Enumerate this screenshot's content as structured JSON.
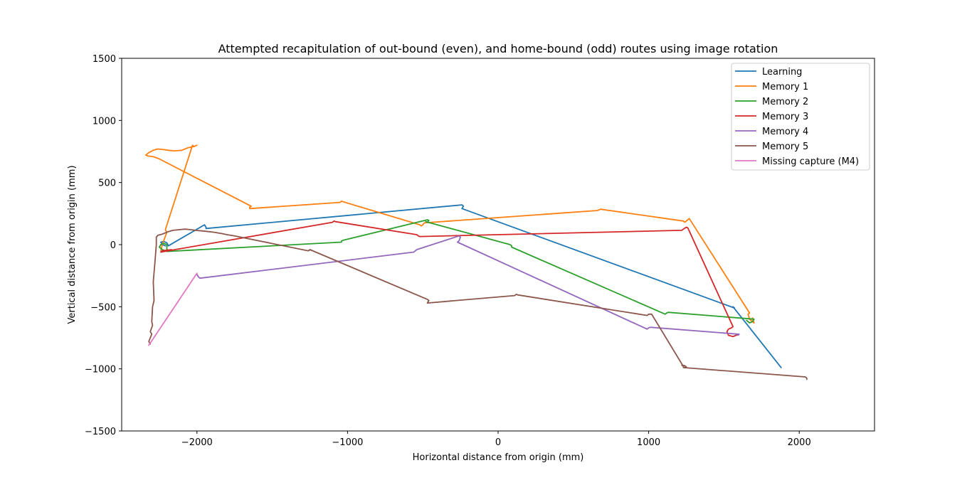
{
  "chart_data": {
    "type": "line",
    "title": "Attempted recapitulation of out-bound (even), and home-bound (odd) routes using image rotation",
    "xlabel": "Horizontal distance from origin (mm)",
    "ylabel": "Vertical distance from origin (mm)",
    "xlim": [
      -2500,
      2500
    ],
    "ylim": [
      -1500,
      1500
    ],
    "xticks": [
      -2000,
      -1000,
      0,
      1000,
      2000
    ],
    "xtick_labels": [
      "−2000",
      "−1000",
      "0",
      "1000",
      "2000"
    ],
    "yticks": [
      -1500,
      -1000,
      -500,
      0,
      500,
      1000,
      1500
    ],
    "ytick_labels": [
      "−1500",
      "−1000",
      "−500",
      "0",
      "500",
      "1000",
      "1500"
    ],
    "grid": false,
    "legend_position": "top-right",
    "series": [
      {
        "name": "Learning",
        "color": "#1f77b4",
        "x": [
          -2210,
          -2230,
          -2240,
          -2220,
          -2200,
          -2190,
          -1950,
          -1940,
          -1940,
          -240,
          -230,
          -240,
          1570,
          1560,
          1880
        ],
        "y": [
          -10,
          0,
          20,
          25,
          15,
          -10,
          160,
          140,
          130,
          320,
          310,
          290,
          -510,
          -500,
          -990
        ]
      },
      {
        "name": "Memory 1",
        "color": "#ff7f0e",
        "x": [
          -2240,
          -2230,
          -2200,
          -2210,
          -2030,
          -2020,
          -2000,
          -2020,
          -2060,
          -2080,
          -2100,
          -2150,
          -2190,
          -2220,
          -2260,
          -2290,
          -2320,
          -2340,
          -2330,
          -2300,
          -2280,
          -2250,
          -1640,
          -1650,
          -1650,
          -1050,
          -1040,
          -1030,
          -520,
          -510,
          -500,
          -490,
          660,
          670,
          680,
          1230,
          1240,
          1260,
          1270,
          1670,
          1660,
          1670,
          1700,
          1690
        ],
        "y": [
          -50,
          0,
          100,
          120,
          800,
          790,
          800,
          790,
          780,
          770,
          760,
          755,
          760,
          765,
          770,
          760,
          740,
          720,
          715,
          710,
          705,
          690,
          310,
          300,
          290,
          340,
          350,
          345,
          160,
          150,
          160,
          175,
          275,
          280,
          285,
          190,
          180,
          200,
          210,
          -550,
          -560,
          -600,
          -630,
          -590
        ]
      },
      {
        "name": "Memory 2",
        "color": "#2ca02c",
        "x": [
          -2210,
          -2230,
          -2250,
          -2240,
          -2220,
          -2200,
          -2200,
          -1040,
          -1040,
          -1030,
          -470,
          -460,
          -470,
          -480,
          80,
          90,
          90,
          1110,
          1120,
          1130,
          1700,
          1690,
          1670,
          1650
        ],
        "y": [
          -50,
          -40,
          -20,
          0,
          10,
          0,
          -55,
          20,
          30,
          35,
          200,
          195,
          180,
          185,
          0,
          -10,
          -20,
          -560,
          -550,
          -545,
          -600,
          -620,
          -630,
          -610
        ]
      },
      {
        "name": "Memory 3",
        "color": "#d62728",
        "x": [
          -2170,
          -2230,
          -2240,
          -1100,
          -1090,
          -1080,
          -540,
          -530,
          -520,
          1220,
          1230,
          1250,
          1260,
          1560,
          1550,
          1530,
          1520,
          1530,
          1560,
          1580,
          1590
        ],
        "y": [
          -40,
          -50,
          -60,
          180,
          190,
          185,
          80,
          70,
          65,
          115,
          125,
          140,
          135,
          -660,
          -670,
          -680,
          -700,
          -730,
          -740,
          -730,
          -720
        ]
      },
      {
        "name": "Memory 4",
        "color": "#9467bd",
        "x": [
          -2000,
          -1990,
          -1980,
          -560,
          -550,
          -540,
          -260,
          -250,
          -260,
          -270,
          990,
          1000,
          1010,
          1590,
          1600,
          1600,
          1590
        ],
        "y": [
          -240,
          -260,
          -270,
          -60,
          -50,
          -40,
          70,
          60,
          30,
          20,
          -680,
          -670,
          -665,
          -720,
          -720,
          -725,
          -730
        ]
      },
      {
        "name": "Memory 5",
        "color": "#8c564b",
        "x": [
          -2040,
          -2010,
          -1960,
          -1890,
          -1840,
          -1800,
          -1750,
          -1260,
          -1250,
          -470,
          -460,
          -470,
          110,
          120,
          130,
          990,
          1000,
          1020,
          1230,
          1220,
          1240,
          1250,
          1230,
          2040,
          2050,
          2050
        ],
        "y": [
          120,
          115,
          110,
          100,
          90,
          80,
          70,
          -50,
          -40,
          -440,
          -450,
          -470,
          -410,
          -400,
          -405,
          -570,
          -560,
          -560,
          -980,
          -970,
          -975,
          -985,
          -990,
          -1065,
          -1075,
          -1085
        ],
        "x_trail": [
          -2040,
          -2080,
          -2120,
          -2160,
          -2190,
          -2210,
          -2230,
          -2260,
          -2270,
          -2270,
          -2280,
          -2290,
          -2285,
          -2295,
          -2300,
          -2295,
          -2310,
          -2300,
          -2310,
          -2320,
          -2310
        ],
        "y_trail": [
          120,
          125,
          120,
          115,
          105,
          95,
          85,
          75,
          60,
          0,
          -150,
          -300,
          -450,
          -500,
          -620,
          -650,
          -700,
          -720,
          -750,
          -780,
          -800
        ]
      },
      {
        "name": "Missing capture (M4)",
        "color": "#e377c2",
        "x": [
          -2320,
          -2000
        ],
        "y": [
          -810,
          -230
        ]
      }
    ]
  }
}
